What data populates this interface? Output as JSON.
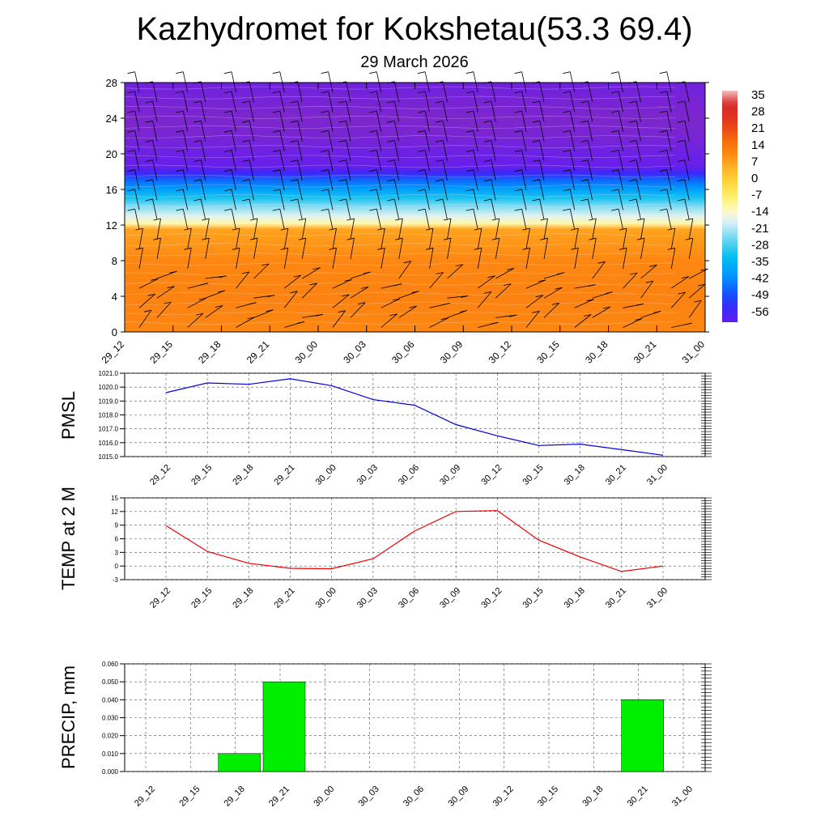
{
  "header": {
    "title": "Kazhydromet for Kokshetau(53.3 69.4)",
    "subtitle": "29 March 2026"
  },
  "colors": {
    "pmsl_line": "#0000dd",
    "temp_line": "#ee0000",
    "precip_bar": "#00ee00",
    "barb": "#000000"
  },
  "chart_data": [
    {
      "type": "heatmap",
      "name": "temperature-height-section",
      "x_ticks": [
        "29_12",
        "29_15",
        "29_18",
        "29_21",
        "30_00",
        "30_03",
        "30_06",
        "30_09",
        "30_12",
        "30_15",
        "30_18",
        "30_21",
        "31_00"
      ],
      "y_ticks": [
        "0",
        "4",
        "8",
        "12",
        "16",
        "20",
        "24",
        "28"
      ],
      "ylim": [
        0,
        28
      ],
      "colorbar_labels": [
        "35",
        "28",
        "21",
        "14",
        "7",
        "0",
        "-7",
        "-14",
        "-21",
        "-28",
        "-35",
        "-42",
        "-49",
        "-56"
      ],
      "colorbar_range": [
        -60,
        40
      ],
      "temperature_profile": {
        "levels": [
          0,
          4,
          8,
          11.5,
          12.2,
          13,
          14,
          15,
          16,
          17,
          17.8,
          18.6,
          20,
          22,
          24,
          28
        ],
        "values": [
          13,
          14,
          13,
          9,
          -10,
          -16,
          -22,
          -30,
          -38,
          -45,
          -54,
          -61,
          -62,
          -65,
          -66,
          -63
        ]
      },
      "wind_barbs": true,
      "grid": false
    },
    {
      "type": "line",
      "name": "pmsl",
      "ylabel": "PMSL",
      "categories": [
        "29_12",
        "29_15",
        "29_18",
        "29_21",
        "30_00",
        "30_03",
        "30_06",
        "30_09",
        "30_12",
        "30_15",
        "30_18",
        "30_21",
        "31_00"
      ],
      "y_ticks": [
        "1021.0",
        "1020.0",
        "1019.0",
        "1018.0",
        "1017.0",
        "1016.0",
        "1015.0"
      ],
      "ylim": [
        1015.0,
        1021.0
      ],
      "values": [
        1019.6,
        1020.3,
        1020.2,
        1020.6,
        1020.1,
        1019.1,
        1018.7,
        1017.3,
        1016.5,
        1015.8,
        1015.9,
        1015.5,
        1015.1
      ],
      "grid": true
    },
    {
      "type": "line",
      "name": "temp-2m",
      "ylabel": "TEMP at 2 M",
      "categories": [
        "29_12",
        "29_15",
        "29_18",
        "29_21",
        "30_00",
        "30_03",
        "30_06",
        "30_09",
        "30_12",
        "30_15",
        "30_18",
        "30_21",
        "31_00"
      ],
      "y_ticks": [
        "15",
        "12",
        "9",
        "6",
        "3",
        "0",
        "-3"
      ],
      "ylim": [
        -3,
        15
      ],
      "values": [
        8.9,
        3.2,
        0.6,
        -0.5,
        -0.6,
        1.6,
        7.7,
        12.0,
        12.2,
        5.7,
        2.0,
        -1.2,
        0.0
      ],
      "grid": true
    },
    {
      "type": "bar",
      "name": "precip",
      "ylabel": "PRECIP, mm",
      "categories": [
        "29_12",
        "29_15",
        "29_18",
        "29_21",
        "30_00",
        "30_03",
        "30_06",
        "30_09",
        "30_12",
        "30_15",
        "30_18",
        "30_21",
        "31_00"
      ],
      "y_ticks": [
        "0.060",
        "0.050",
        "0.040",
        "0.030",
        "0.020",
        "0.010",
        "0.000"
      ],
      "ylim": [
        0,
        0.06
      ],
      "values": [
        0,
        0,
        0.01,
        0.05,
        0,
        0,
        0,
        0,
        0,
        0,
        0,
        0.04,
        0
      ],
      "grid": true
    }
  ]
}
